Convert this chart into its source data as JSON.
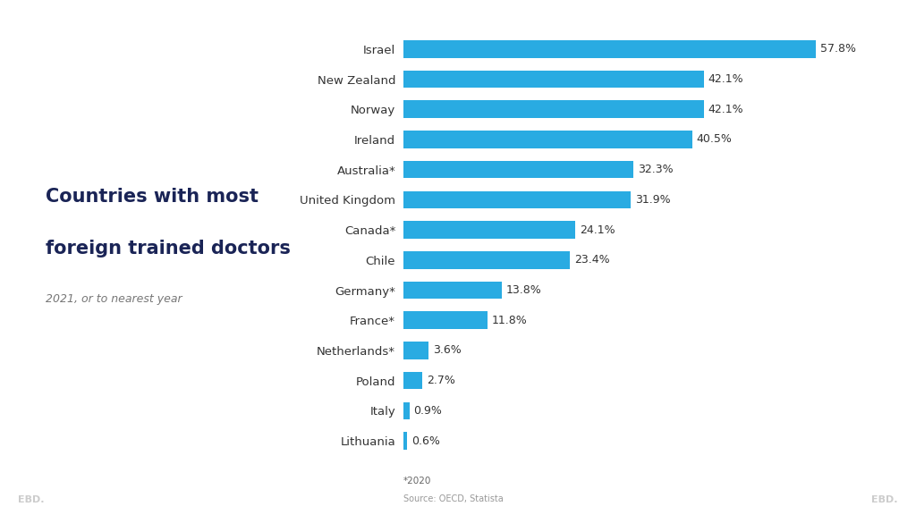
{
  "countries": [
    "Israel",
    "New Zealand",
    "Norway",
    "Ireland",
    "Australia*",
    "United Kingdom",
    "Canada*",
    "Chile",
    "Germany*",
    "France*",
    "Netherlands*",
    "Poland",
    "Italy",
    "Lithuania"
  ],
  "values": [
    57.8,
    42.1,
    42.1,
    40.5,
    32.3,
    31.9,
    24.1,
    23.4,
    13.8,
    11.8,
    3.6,
    2.7,
    0.9,
    0.6
  ],
  "bar_color": "#29ABE2",
  "label_color": "#333333",
  "title_line1": "Countries with most",
  "title_line2": "foreign trained doctors",
  "subtitle": "2021, or to nearest year",
  "title_color": "#1a2456",
  "subtitle_color": "#777777",
  "footnote": "*2020",
  "source": "Source: OECD, Statista",
  "background_color": "#ffffff",
  "panel_color": "#f0f0f0",
  "xlim": [
    0,
    68
  ],
  "bar_height": 0.58,
  "value_label_fontsize": 9,
  "country_label_fontsize": 9.5,
  "title_fontsize": 15,
  "subtitle_fontsize": 9,
  "ebd_color": "#cccccc"
}
